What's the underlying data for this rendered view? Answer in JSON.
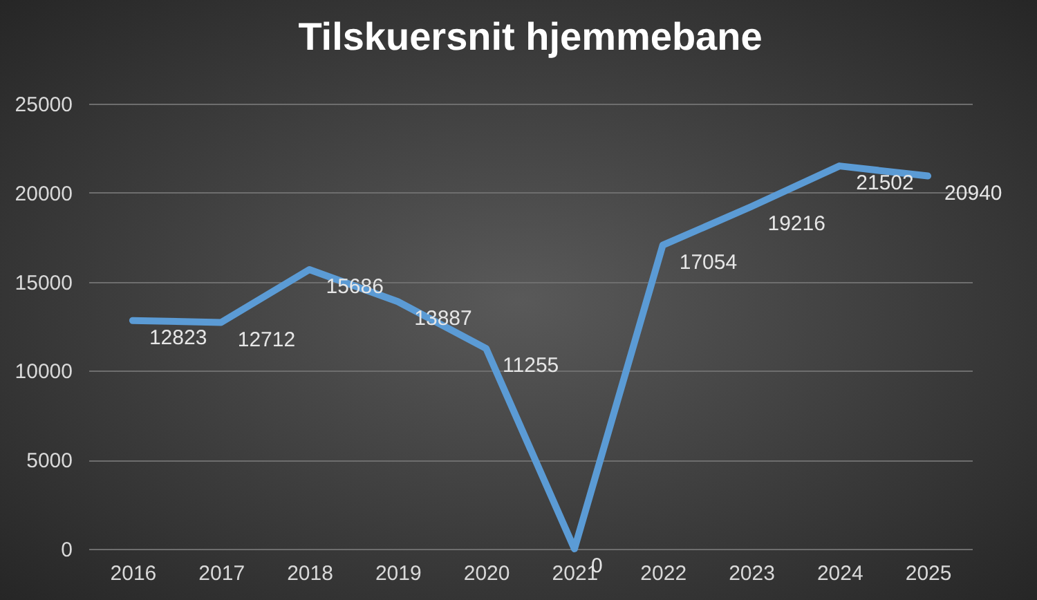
{
  "chart_data": {
    "type": "line",
    "title": "Tilskuersnit hjemmebane",
    "categories": [
      "2016",
      "2017",
      "2018",
      "2019",
      "2020",
      "2021",
      "2022",
      "2023",
      "2024",
      "2025"
    ],
    "series": [
      {
        "color": "#5b9bd5",
        "values": [
          12823,
          12712,
          15686,
          13887,
          11255,
          0,
          17054,
          19216,
          21502,
          20940
        ]
      }
    ],
    "ylim": [
      0,
      25000
    ],
    "yticks": [
      0,
      5000,
      10000,
      15000,
      20000,
      25000
    ],
    "grid": "y",
    "data_labels": true,
    "marker": "none",
    "line_style": "solid"
  }
}
